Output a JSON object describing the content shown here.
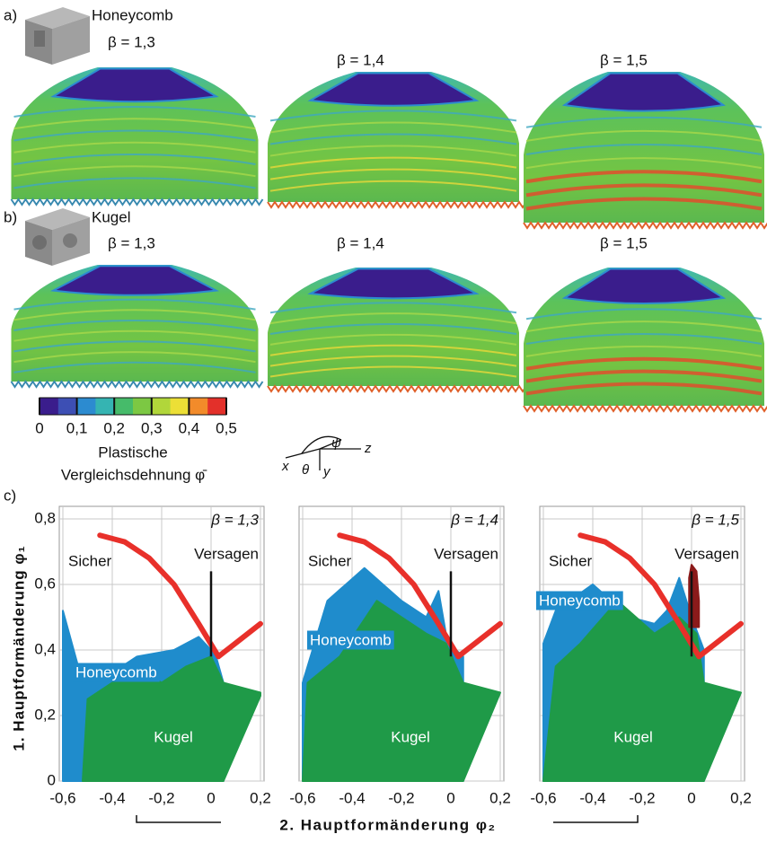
{
  "panel_a": {
    "label": "a)",
    "name": "Honeycomb",
    "betas": [
      "β = 1,3",
      "β = 1,4",
      "β = 1,5"
    ]
  },
  "panel_b": {
    "label": "b)",
    "name": "Kugel",
    "betas": [
      "β = 1,3",
      "β = 1,4",
      "β = 1,5"
    ]
  },
  "colorbar": {
    "ticks": [
      0,
      {
        "value": 0.1,
        "label": "0,1"
      },
      {
        "value": 0.2,
        "label": "0,2"
      },
      {
        "value": 0.3,
        "label": "0,3"
      },
      {
        "value": 0.4,
        "label": "0,4"
      },
      {
        "value": 0.5,
        "label": "0,5"
      }
    ],
    "lim": [
      0,
      0.5
    ],
    "colors": [
      "#3a1d8c",
      "#3d4fb4",
      "#2c8bd0",
      "#35b4b2",
      "#46bb6a",
      "#7cc843",
      "#b1d63a",
      "#ecdf36",
      "#f28b2a",
      "#e3302a"
    ],
    "title": [
      "Plastische",
      "Vergleichsdehnung φ̄"
    ]
  },
  "axes_symbols": {
    "x": "x",
    "y": "y",
    "z": "z",
    "theta": "θ",
    "psi": "ψ"
  },
  "panel_c_label": "c)",
  "chart_data": [
    {
      "type": "scatter",
      "title": "β = 1,3",
      "annotations": [
        "Sicher",
        "Versagen"
      ],
      "ylabel": "1. Hauptformänderung φ₁",
      "xlim": [
        -0.6,
        0.2
      ],
      "ylim": [
        0,
        0.8
      ],
      "xticks": [
        {
          "value": -0.6,
          "label": "-0,6"
        },
        {
          "value": -0.4,
          "label": "-0,4"
        },
        {
          "value": -0.2,
          "label": "-0,2"
        },
        0,
        {
          "value": 0.2,
          "label": "0,2"
        }
      ],
      "yticks": [
        0,
        {
          "value": 0.2,
          "label": "0,2"
        },
        {
          "value": 0.4,
          "label": "0,4"
        },
        {
          "value": 0.6,
          "label": "0,6"
        },
        {
          "value": 0.8,
          "label": "0,8"
        }
      ],
      "grid": true,
      "series": [
        {
          "name": "Honeycomb",
          "color": "#1f8ccc",
          "x": [
            -0.6,
            -0.6,
            -0.52,
            -0.4,
            -0.3,
            -0.15,
            -0.05,
            0,
            0.02,
            0.05,
            0.05
          ],
          "values": [
            0,
            0.52,
            0.3,
            0.33,
            0.38,
            0.4,
            0.44,
            0.4,
            0.38,
            0.3,
            0
          ]
        },
        {
          "name": "Kugel",
          "color": "#1f9a48",
          "x": [
            -0.52,
            -0.5,
            -0.4,
            -0.3,
            -0.2,
            -0.1,
            0,
            0.05,
            0.2,
            0.2,
            0.05
          ],
          "values": [
            0,
            0.25,
            0.3,
            0.34,
            0.3,
            0.35,
            0.38,
            0.3,
            0.27,
            0.26,
            0
          ]
        }
      ],
      "limit_curve": {
        "color": "#e8302a",
        "x": [
          -0.45,
          -0.35,
          -0.25,
          -0.15,
          -0.05,
          0.03,
          0.2
        ],
        "values": [
          0.75,
          0.73,
          0.68,
          0.6,
          0.48,
          0.38,
          0.48
        ]
      },
      "divider": {
        "x": 0,
        "values": [
          0.38,
          0.64
        ]
      }
    },
    {
      "type": "scatter",
      "title": "β = 1,4",
      "annotations": [
        "Sicher",
        "Versagen"
      ],
      "xlabel": "2. Hauptformänderung φ₂",
      "xlim": [
        -0.6,
        0.2
      ],
      "ylim": [
        0,
        0.8
      ],
      "xticks": [
        {
          "value": -0.6,
          "label": "-0,6"
        },
        {
          "value": -0.4,
          "label": "-0,4"
        },
        {
          "value": -0.2,
          "label": "-0,2"
        },
        0,
        {
          "value": 0.2,
          "label": "0,2"
        }
      ],
      "yticks": [
        0,
        0.2,
        0.4,
        0.6,
        0.8
      ],
      "grid": true,
      "series": [
        {
          "name": "Honeycomb",
          "color": "#1f8ccc",
          "x": [
            -0.6,
            -0.6,
            -0.5,
            -0.35,
            -0.2,
            -0.1,
            -0.05,
            -0.02,
            0.02,
            0.05,
            0.05
          ],
          "values": [
            0,
            0.3,
            0.55,
            0.65,
            0.55,
            0.5,
            0.58,
            0.45,
            0.4,
            0.38,
            0
          ]
        },
        {
          "name": "Kugel",
          "color": "#1f9a48",
          "x": [
            -0.6,
            -0.58,
            -0.45,
            -0.3,
            -0.2,
            -0.1,
            -0.02,
            0.05,
            0.2,
            0.05
          ],
          "values": [
            0,
            0.3,
            0.38,
            0.55,
            0.5,
            0.45,
            0.42,
            0.3,
            0.27,
            0
          ]
        }
      ],
      "limit_curve": {
        "color": "#e8302a",
        "x": [
          -0.45,
          -0.35,
          -0.25,
          -0.15,
          -0.05,
          0.03,
          0.2
        ],
        "values": [
          0.75,
          0.73,
          0.68,
          0.6,
          0.48,
          0.38,
          0.48
        ]
      },
      "divider": {
        "x": 0,
        "values": [
          0.38,
          0.64
        ]
      }
    },
    {
      "type": "scatter",
      "title": "β = 1,5",
      "annotations": [
        "Sicher",
        "Versagen"
      ],
      "xlim": [
        -0.6,
        0.2
      ],
      "ylim": [
        0,
        0.8
      ],
      "xticks": [
        {
          "value": -0.6,
          "label": "-0,6"
        },
        {
          "value": -0.4,
          "label": "-0,4"
        },
        {
          "value": -0.2,
          "label": "-0,2"
        },
        0,
        {
          "value": 0.2,
          "label": "0,2"
        }
      ],
      "yticks": [
        0,
        0.2,
        0.4,
        0.6,
        0.8
      ],
      "grid": true,
      "series": [
        {
          "name": "Honeycomb",
          "color": "#1f8ccc",
          "x": [
            -0.6,
            -0.6,
            -0.55,
            -0.4,
            -0.25,
            -0.15,
            -0.1,
            -0.05,
            0,
            0.05,
            0.05
          ],
          "values": [
            0,
            0.42,
            0.52,
            0.6,
            0.5,
            0.48,
            0.52,
            0.62,
            0.5,
            0.4,
            0
          ]
        },
        {
          "name": "Kugel",
          "color": "#1f9a48",
          "x": [
            -0.6,
            -0.55,
            -0.45,
            -0.3,
            -0.15,
            -0.05,
            0.02,
            0.05,
            0.2,
            0.05
          ],
          "values": [
            0,
            0.35,
            0.42,
            0.55,
            0.45,
            0.5,
            0.45,
            0.3,
            0.27,
            0
          ]
        },
        {
          "color": "#8b1a1a",
          "x": [
            -0.01,
            -0.01,
            0.0,
            0.02,
            0.03,
            0.03
          ],
          "values": [
            0.47,
            0.62,
            0.66,
            0.64,
            0.55,
            0.47
          ]
        }
      ],
      "limit_curve": {
        "color": "#e8302a",
        "x": [
          -0.45,
          -0.35,
          -0.25,
          -0.15,
          -0.05,
          0.03,
          0.2
        ],
        "values": [
          0.75,
          0.73,
          0.68,
          0.6,
          0.48,
          0.38,
          0.48
        ]
      },
      "divider": {
        "x": 0,
        "values": [
          0.38,
          0.64
        ]
      }
    }
  ]
}
